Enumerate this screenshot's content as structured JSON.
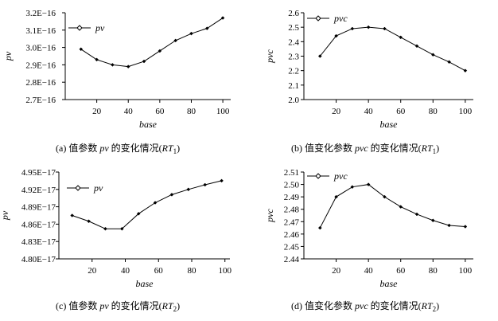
{
  "chart_data": [
    {
      "type": "line",
      "caption": {
        "prefix": "(a)  值参数 ",
        "param": "pv",
        "middle": " 的变化情况(",
        "rt": "RT",
        "sub": "1",
        "suffix": ")"
      },
      "xlabel": "base",
      "ylabel": "pv",
      "x": [
        10,
        20,
        30,
        40,
        50,
        60,
        70,
        80,
        90,
        100
      ],
      "series": [
        {
          "name": "pv",
          "values": [
            2.99e-16,
            2.93e-16,
            2.9e-16,
            2.89e-16,
            2.92e-16,
            2.98e-16,
            3.04e-16,
            3.08e-16,
            3.11e-16,
            3.17e-16
          ]
        }
      ],
      "xticks": [
        20,
        40,
        60,
        80,
        100
      ],
      "xtick_labels": [
        "20",
        "40",
        "60",
        "80",
        "100"
      ],
      "xlim": [
        0,
        105
      ],
      "yticks": [
        2.7e-16,
        2.8e-16,
        2.9e-16,
        3e-16,
        3.1e-16,
        3.2e-16
      ],
      "ytick_labels": [
        "2.7E−16",
        "2.8E−16",
        "2.9E−16",
        "3.0E−16",
        "3.1E−16",
        "3.2E−16"
      ],
      "ylim": [
        2.7e-16,
        3.2e-16
      ],
      "legend_placement": "top-left",
      "grid": false
    },
    {
      "type": "line",
      "caption": {
        "prefix": "(b)  值变化参数 ",
        "param": "pvc",
        "middle": " 的变化情况(",
        "rt": "RT",
        "sub": "1",
        "suffix": ")"
      },
      "xlabel": "base",
      "ylabel": "pvc",
      "x": [
        10,
        20,
        30,
        40,
        50,
        60,
        70,
        80,
        90,
        100
      ],
      "series": [
        {
          "name": "pvc",
          "values": [
            2.3,
            2.44,
            2.49,
            2.5,
            2.49,
            2.43,
            2.37,
            2.31,
            2.26,
            2.2
          ]
        }
      ],
      "xticks": [
        20,
        40,
        60,
        80,
        100
      ],
      "xtick_labels": [
        "20",
        "40",
        "60",
        "80",
        "100"
      ],
      "xlim": [
        0,
        105
      ],
      "yticks": [
        2.0,
        2.1,
        2.2,
        2.3,
        2.4,
        2.5,
        2.6
      ],
      "ytick_labels": [
        "2.0",
        "2.1",
        "2.2",
        "2.3",
        "2.4",
        "2.5",
        "2.6"
      ],
      "ylim": [
        2.0,
        2.6
      ],
      "legend_placement": "top-left",
      "grid": false
    },
    {
      "type": "line",
      "caption": {
        "prefix": "(c)  值参数 ",
        "param": "pv",
        "middle": " 的变化情况(",
        "rt": "RT",
        "sub": "2",
        "suffix": ")"
      },
      "xlabel": "base",
      "ylabel": "pv",
      "x": [
        8,
        18,
        28,
        38,
        48,
        58,
        68,
        78,
        88,
        98
      ],
      "series": [
        {
          "name": "pv",
          "values": [
            4.875e-17,
            4.865e-17,
            4.852e-17,
            4.852e-17,
            4.878e-17,
            4.897e-17,
            4.911e-17,
            4.92e-17,
            4.928e-17,
            4.935e-17
          ]
        }
      ],
      "xticks": [
        20,
        40,
        60,
        80,
        100
      ],
      "xtick_labels": [
        "20",
        "40",
        "60",
        "80",
        "100"
      ],
      "xlim": [
        0,
        103
      ],
      "yticks": [
        4.8e-17,
        4.83e-17,
        4.86e-17,
        4.89e-17,
        4.92e-17,
        4.95e-17
      ],
      "ytick_labels": [
        "4.80E−17",
        "4.83E−17",
        "4.86E−17",
        "4.89E−17",
        "4.92E−17",
        "4.95E−17"
      ],
      "ylim": [
        4.8e-17,
        4.95e-17
      ],
      "legend_placement": "top-left",
      "grid": false
    },
    {
      "type": "line",
      "caption": {
        "prefix": "(d)  值变化参数 ",
        "param": "pvc",
        "middle": " 的变化情况(",
        "rt": "RT",
        "sub": "2",
        "suffix": ")"
      },
      "xlabel": "base",
      "ylabel": "pvc",
      "x": [
        10,
        20,
        30,
        40,
        50,
        60,
        70,
        80,
        90,
        100
      ],
      "series": [
        {
          "name": "pvc",
          "values": [
            2.465,
            2.49,
            2.498,
            2.5,
            2.49,
            2.482,
            2.476,
            2.471,
            2.467,
            2.466
          ]
        }
      ],
      "xticks": [
        20,
        40,
        60,
        80,
        100
      ],
      "xtick_labels": [
        "20",
        "40",
        "60",
        "80",
        "100"
      ],
      "xlim": [
        0,
        105
      ],
      "yticks": [
        2.44,
        2.45,
        2.46,
        2.47,
        2.48,
        2.49,
        2.5,
        2.51
      ],
      "ytick_labels": [
        "2.44",
        "2.45",
        "2.46",
        "2.47",
        "2.48",
        "2.49",
        "2.50",
        "2.51"
      ],
      "ylim": [
        2.44,
        2.51
      ],
      "legend_placement": "top-left",
      "grid": false
    }
  ]
}
